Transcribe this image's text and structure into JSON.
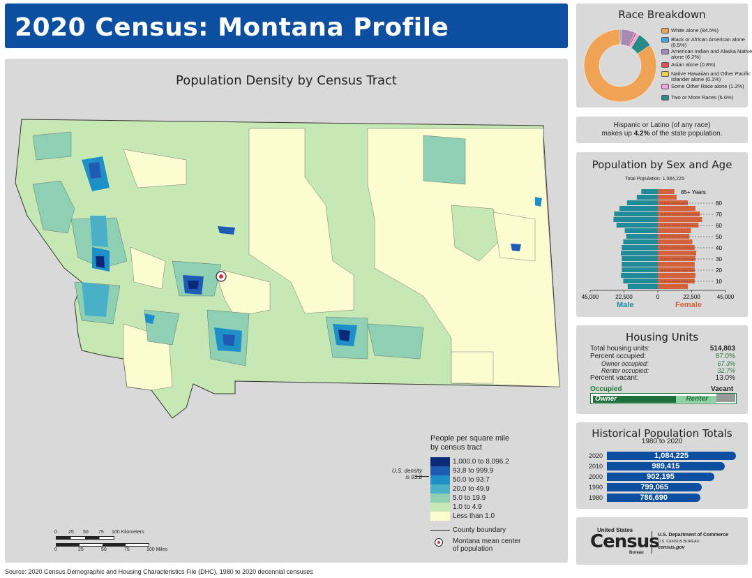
{
  "title": "2020 Census: Montana Profile",
  "map": {
    "title": "Population Density by Census Tract",
    "legend_title": "People per square mile\nby census tract",
    "legend_items": [
      {
        "label": "1,000.0 to 8,096.2",
        "color": "#0b2a7a"
      },
      {
        "label": "93.8 to 999.9",
        "color": "#1f5bb3"
      },
      {
        "label": "50.0 to 93.7",
        "color": "#1f8fc8"
      },
      {
        "label": "20.0 to 49.9",
        "color": "#4ab0c8"
      },
      {
        "label": "5.0 to 19.9",
        "color": "#8fd0b4"
      },
      {
        "label": "1.0 to 4.9",
        "color": "#c6e8b4"
      },
      {
        "label": "Less than 1.0",
        "color": "#fbfcd0"
      }
    ],
    "us_density_label": "U.S. density\nis 93.8",
    "county_boundary_label": "County boundary",
    "mean_center_label": "Montana mean center\nof population",
    "scale_km": [
      "0",
      "25",
      "50",
      "75",
      "100 Kilometers"
    ],
    "scale_mi": [
      "0",
      "25",
      "50",
      "75",
      "100 Miles"
    ]
  },
  "race": {
    "title": "Race Breakdown",
    "items": [
      {
        "label": "White alone (84.5%)",
        "value": 84.5,
        "color": "#f0a255"
      },
      {
        "label": "Black or African American alone (0.5%)",
        "value": 0.5,
        "color": "#4a9ee0"
      },
      {
        "label": "American Indian and Alaska Native alone (6.2%)",
        "value": 6.2,
        "color": "#a58ab8"
      },
      {
        "label": "Asian alone (0.8%)",
        "value": 0.8,
        "color": "#e0525a"
      },
      {
        "label": "Native Hawaiian and Other Pacific Islander alone (0.1%)",
        "value": 0.1,
        "color": "#f2d14a"
      },
      {
        "label": "Some Other Race alone (1.3%)",
        "value": 1.3,
        "color": "#f3a3e0"
      },
      {
        "label": "Two or More Races (6.6%)",
        "value": 6.6,
        "color": "#2a8a86"
      }
    ]
  },
  "hispanic": {
    "line1": "Hispanic or Latino (of any race)",
    "line2_pre": "makes up ",
    "line2_bold": "4.2%",
    "line2_post": " of the state population."
  },
  "pyramid": {
    "title": "Population by Sex and Age",
    "total": "Total Population: 1,084,225",
    "male_label": "Male",
    "female_label": "Female",
    "x_ticks": [
      "45,000",
      "22,500",
      "0",
      "22,500",
      "45,000"
    ],
    "age_labels": [
      "85+ Years",
      "80",
      "70",
      "60",
      "50",
      "40",
      "30",
      "20",
      "10"
    ],
    "male": [
      11000,
      14000,
      20500,
      25500,
      29000,
      29500,
      27500,
      22000,
      21000,
      23000,
      24000,
      24500,
      24000,
      24000,
      24000,
      24500,
      23000,
      20000
    ],
    "female": [
      11000,
      12500,
      20000,
      25000,
      28000,
      29500,
      27000,
      22000,
      21000,
      23000,
      24500,
      25500,
      25000,
      24500,
      24500,
      25000,
      24500,
      20000
    ],
    "male_color": "#1f8a98",
    "female_color": "#d2613c"
  },
  "housing": {
    "title": "Housing Units",
    "rows": [
      {
        "label": "Total housing units:",
        "value": "514,803",
        "style": "bold"
      },
      {
        "label": "Percent occupied:",
        "value": "87.0%",
        "style": "green"
      },
      {
        "label": "Owner occupied:",
        "value": "67.3%",
        "style": "italic-green"
      },
      {
        "label": "Renter occupied:",
        "value": "32.7%",
        "style": "italic-green"
      },
      {
        "label": "Percent vacant:",
        "value": "13.0%",
        "style": "normal"
      }
    ],
    "occupied_label": "Occupied",
    "vacant_label": "Vacant",
    "owner_label": "Owner",
    "renter_label": "Renter",
    "owner_pct": 58.5,
    "renter_pct": 28.5,
    "vacant_pct": 13.0
  },
  "history": {
    "title": "Historical Population Totals",
    "subtitle": "1980 to 2020",
    "rows": [
      {
        "year": "2020",
        "value": "1,084,225",
        "num": 1084225
      },
      {
        "year": "2010",
        "value": "989,415",
        "num": 989415
      },
      {
        "year": "2000",
        "value": "902,195",
        "num": 902195
      },
      {
        "year": "1990",
        "value": "799,065",
        "num": 799065
      },
      {
        "year": "1980",
        "value": "786,690",
        "num": 786690
      }
    ]
  },
  "logo": {
    "united_states": "United States",
    "census": "Census",
    "bureau": "Bureau",
    "dept": "U.S. Department of Commerce",
    "bureau_name": "U.S. CENSUS BUREAU",
    "site": "census.gov"
  },
  "source": "Source: 2020 Census Demographic and Housing Characteristics File (DHC), 1980 to 2020 decennial censuses"
}
